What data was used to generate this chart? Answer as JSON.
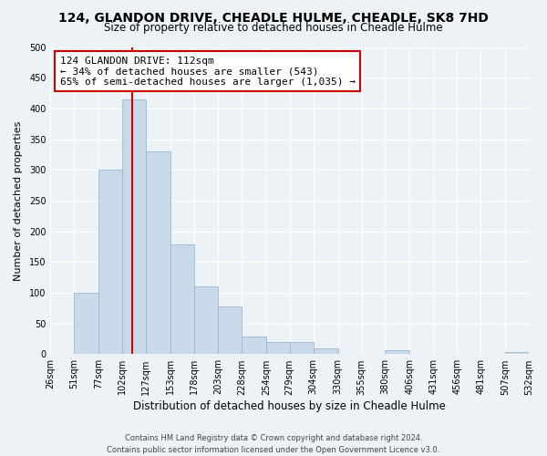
{
  "title": "124, GLANDON DRIVE, CHEADLE HULME, CHEADLE, SK8 7HD",
  "subtitle": "Size of property relative to detached houses in Cheadle Hulme",
  "xlabel": "Distribution of detached houses by size in Cheadle Hulme",
  "ylabel": "Number of detached properties",
  "bar_color": "#c8daea",
  "bar_edge_color": "#9ab8cc",
  "vline_x": 112,
  "vline_color": "#cc0000",
  "annotation_title": "124 GLANDON DRIVE: 112sqm",
  "annotation_line1": "← 34% of detached houses are smaller (543)",
  "annotation_line2": "65% of semi-detached houses are larger (1,035) →",
  "annotation_box_facecolor": "#ffffff",
  "annotation_box_edgecolor": "#cc0000",
  "bin_edges": [
    26,
    51,
    77,
    102,
    127,
    153,
    178,
    203,
    228,
    254,
    279,
    304,
    330,
    355,
    380,
    406,
    431,
    456,
    481,
    507,
    532
  ],
  "bin_counts": [
    0,
    100,
    300,
    415,
    330,
    178,
    110,
    77,
    28,
    20,
    20,
    10,
    0,
    0,
    7,
    0,
    0,
    0,
    0,
    3
  ],
  "ylim": [
    0,
    500
  ],
  "yticks": [
    0,
    50,
    100,
    150,
    200,
    250,
    300,
    350,
    400,
    450,
    500
  ],
  "footer_line1": "Contains HM Land Registry data © Crown copyright and database right 2024.",
  "footer_line2": "Contains public sector information licensed under the Open Government Licence v3.0.",
  "background_color": "#edf2f7",
  "grid_color": "#ffffff",
  "title_fontsize": 10,
  "subtitle_fontsize": 8.5,
  "ylabel_fontsize": 8,
  "xlabel_fontsize": 8.5,
  "tick_fontsize": 7,
  "footer_fontsize": 6
}
